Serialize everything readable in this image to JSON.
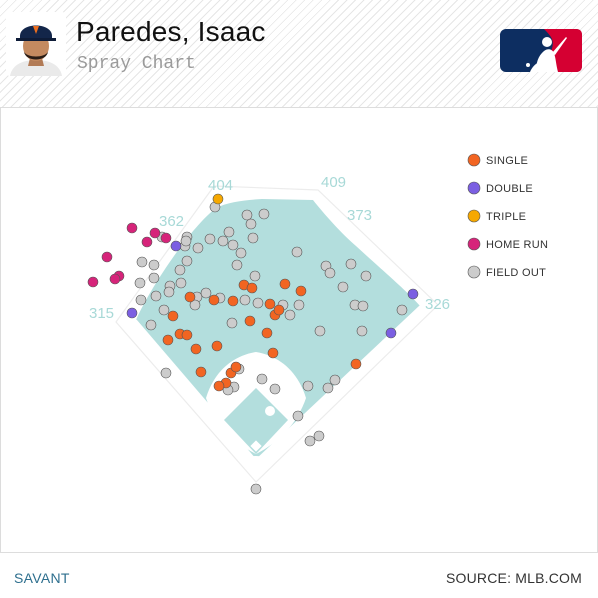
{
  "header": {
    "player_name": "Paredes, Isaac",
    "subtitle": "Spray Chart"
  },
  "footer": {
    "left": "SAVANT",
    "right": "SOURCE: MLB.COM"
  },
  "colors": {
    "field": "#b3dedd",
    "single": "#f26522",
    "double": "#7b5fe2",
    "triple": "#f6a800",
    "home_run": "#d6247a",
    "field_out": "#cccccc",
    "mlb_blue": "#0d2e61",
    "mlb_red": "#d50032"
  },
  "chart_data": {
    "type": "scatter",
    "title": "Spray Chart",
    "wall_distances": [
      "404",
      "409",
      "373",
      "362",
      "315",
      "326"
    ],
    "legend": [
      {
        "key": "single",
        "label": "SINGLE"
      },
      {
        "key": "double",
        "label": "DOUBLE"
      },
      {
        "key": "triple",
        "label": "TRIPLE"
      },
      {
        "key": "home_run",
        "label": "HOME RUN"
      },
      {
        "key": "field_out",
        "label": "FIELD OUT"
      }
    ],
    "series": [
      {
        "name": "SINGLE",
        "key": "single",
        "points": [
          [
            190,
            297
          ],
          [
            173,
            316
          ],
          [
            214,
            300
          ],
          [
            233,
            301
          ],
          [
            244,
            285
          ],
          [
            252,
            288
          ],
          [
            285,
            284
          ],
          [
            301,
            291
          ],
          [
            270,
            304
          ],
          [
            168,
            340
          ],
          [
            180,
            334
          ],
          [
            187,
            335
          ],
          [
            217,
            346
          ],
          [
            196,
            349
          ],
          [
            250,
            321
          ],
          [
            267,
            333
          ],
          [
            275,
            315
          ],
          [
            279,
            310
          ],
          [
            231,
            373
          ],
          [
            236,
            367
          ],
          [
            226,
            383
          ],
          [
            219,
            386
          ],
          [
            201,
            372
          ],
          [
            273,
            353
          ],
          [
            356,
            364
          ]
        ]
      },
      {
        "name": "DOUBLE",
        "key": "double",
        "points": [
          [
            176,
            246
          ],
          [
            132,
            313
          ],
          [
            413,
            294
          ],
          [
            391,
            333
          ]
        ]
      },
      {
        "name": "TRIPLE",
        "key": "triple",
        "points": [
          [
            218,
            199
          ]
        ]
      },
      {
        "name": "HOME RUN",
        "key": "home_run",
        "points": [
          [
            132,
            228
          ],
          [
            155,
            233
          ],
          [
            166,
            238
          ],
          [
            147,
            242
          ],
          [
            107,
            257
          ],
          [
            119,
            276
          ],
          [
            115,
            279
          ],
          [
            93,
            282
          ]
        ]
      },
      {
        "name": "FIELD OUT",
        "key": "field_out",
        "points": [
          [
            215,
            207
          ],
          [
            247,
            215
          ],
          [
            264,
            214
          ],
          [
            187,
            237
          ],
          [
            229,
            232
          ],
          [
            251,
            224
          ],
          [
            253,
            238
          ],
          [
            185,
            246
          ],
          [
            198,
            248
          ],
          [
            210,
            239
          ],
          [
            223,
            241
          ],
          [
            233,
            245
          ],
          [
            241,
            253
          ],
          [
            297,
            252
          ],
          [
            187,
            261
          ],
          [
            180,
            270
          ],
          [
            237,
            265
          ],
          [
            255,
            276
          ],
          [
            326,
            266
          ],
          [
            330,
            273
          ],
          [
            351,
            264
          ],
          [
            366,
            276
          ],
          [
            142,
            262
          ],
          [
            154,
            278
          ],
          [
            141,
            300
          ],
          [
            170,
            286
          ],
          [
            181,
            283
          ],
          [
            197,
            297
          ],
          [
            206,
            293
          ],
          [
            220,
            298
          ],
          [
            245,
            300
          ],
          [
            258,
            303
          ],
          [
            283,
            305
          ],
          [
            299,
            305
          ],
          [
            343,
            287
          ],
          [
            355,
            305
          ],
          [
            363,
            306
          ],
          [
            402,
            310
          ],
          [
            151,
            325
          ],
          [
            164,
            310
          ],
          [
            195,
            305
          ],
          [
            232,
            323
          ],
          [
            290,
            315
          ],
          [
            320,
            331
          ],
          [
            362,
            331
          ],
          [
            166,
            373
          ],
          [
            239,
            369
          ],
          [
            262,
            379
          ],
          [
            234,
            387
          ],
          [
            228,
            390
          ],
          [
            275,
            389
          ],
          [
            308,
            386
          ],
          [
            335,
            380
          ],
          [
            328,
            388
          ],
          [
            298,
            416
          ],
          [
            319,
            436
          ],
          [
            310,
            441
          ],
          [
            256,
            489
          ],
          [
            169,
            292
          ],
          [
            156,
            296
          ],
          [
            140,
            283
          ],
          [
            154,
            265
          ],
          [
            186,
            241
          ],
          [
            162,
            237
          ]
        ]
      }
    ]
  }
}
